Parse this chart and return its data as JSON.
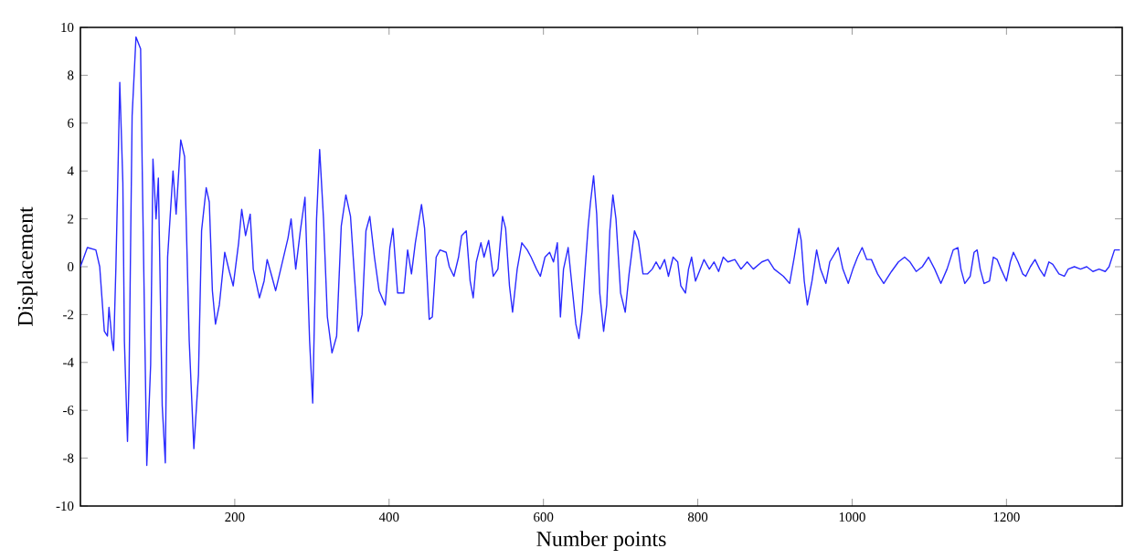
{
  "chart_data": {
    "type": "line",
    "xlabel": "Number points",
    "ylabel": "Displacement",
    "xlim": [
      0,
      1350
    ],
    "ylim": [
      -10,
      10
    ],
    "xticks": [
      200,
      400,
      600,
      800,
      1000,
      1200
    ],
    "yticks": [
      -10,
      -8,
      -6,
      -4,
      -2,
      0,
      2,
      4,
      6,
      8,
      10
    ],
    "marker": "none",
    "line_style": "solid",
    "series": [
      {
        "color": "#2a2aff",
        "x": [
          0,
          9,
          20,
          25,
          31,
          35,
          37,
          41,
          43,
          46,
          49,
          51,
          55,
          57,
          61,
          63,
          67,
          72,
          78,
          80,
          86,
          91,
          94,
          98,
          101,
          106,
          110,
          113,
          120,
          124,
          130,
          135,
          141,
          147,
          153,
          157,
          163,
          167,
          171,
          175,
          180,
          187,
          193,
          198,
          205,
          209,
          214,
          220,
          224,
          232,
          238,
          242,
          248,
          253,
          261,
          269,
          273,
          279,
          285,
          291,
          297,
          301,
          306,
          310,
          315,
          320,
          326,
          332,
          338,
          344,
          350,
          356,
          360,
          365,
          370,
          375,
          381,
          387,
          395,
          401,
          405,
          411,
          419,
          424,
          429,
          434,
          442,
          446,
          452,
          456,
          461,
          466,
          474,
          478,
          484,
          490,
          494,
          500,
          505,
          509,
          513,
          519,
          523,
          529,
          535,
          541,
          547,
          551,
          556,
          560,
          566,
          572,
          579,
          584,
          591,
          596,
          602,
          608,
          613,
          618,
          622,
          626,
          632,
          637,
          642,
          646,
          650,
          654,
          658,
          661,
          665,
          669,
          673,
          678,
          682,
          686,
          690,
          694,
          700,
          706,
          711,
          718,
          723,
          729,
          735,
          741,
          746,
          751,
          757,
          762,
          768,
          774,
          778,
          784,
          788,
          792,
          797,
          802,
          808,
          815,
          821,
          827,
          833,
          839,
          848,
          856,
          864,
          872,
          883,
          891,
          899,
          911,
          919,
          925,
          931,
          934,
          938,
          942,
          948,
          954,
          959,
          966,
          971,
          982,
          988,
          995,
          1001,
          1007,
          1013,
          1019,
          1025,
          1033,
          1041,
          1051,
          1060,
          1068,
          1075,
          1083,
          1091,
          1099,
          1107,
          1115,
          1123,
          1131,
          1137,
          1141,
          1146,
          1153,
          1158,
          1162,
          1166,
          1171,
          1178,
          1183,
          1188,
          1193,
          1200,
          1205,
          1209,
          1215,
          1221,
          1225,
          1231,
          1237,
          1243,
          1249,
          1255,
          1260,
          1268,
          1275,
          1280,
          1288,
          1296,
          1304,
          1312,
          1320,
          1328,
          1333,
          1340,
          1344,
          1347
        ],
        "values": [
          0,
          0.8,
          0.7,
          0,
          -2.7,
          -2.9,
          -1.7,
          -3.1,
          -3.5,
          0,
          4.5,
          7.7,
          3.5,
          -3.1,
          -7.3,
          -4.7,
          6.3,
          9.6,
          9.1,
          4.3,
          -8.3,
          -4.1,
          4.5,
          2,
          3.7,
          -5.8,
          -8.2,
          0.4,
          4,
          2.2,
          5.3,
          4.6,
          -3.1,
          -7.6,
          -4.5,
          1.5,
          3.3,
          2.7,
          -1,
          -2.4,
          -1.6,
          0.6,
          -0.2,
          -0.8,
          1,
          2.4,
          1.3,
          2.2,
          -0.1,
          -1.3,
          -0.6,
          0.3,
          -0.4,
          -1,
          0.1,
          1.2,
          2,
          -0.1,
          1.5,
          2.9,
          -3.1,
          -5.7,
          2,
          4.9,
          2,
          -2.1,
          -3.6,
          -2.9,
          1.7,
          3,
          2.1,
          -0.8,
          -2.7,
          -2,
          1.5,
          2.1,
          0.4,
          -1,
          -1.6,
          0.8,
          1.6,
          -1.1,
          -1.1,
          0.7,
          -0.3,
          1,
          2.6,
          1.6,
          -2.2,
          -2.1,
          0.4,
          0.7,
          0.6,
          0,
          -0.4,
          0.4,
          1.3,
          1.5,
          -0.6,
          -1.3,
          0.2,
          1,
          0.4,
          1.1,
          -0.4,
          -0.1,
          2.1,
          1.6,
          -0.8,
          -1.9,
          -0.1,
          1,
          0.7,
          0.4,
          -0.1,
          -0.4,
          0.4,
          0.6,
          0.2,
          1,
          -2.1,
          -0.1,
          0.8,
          -0.8,
          -2.4,
          -3,
          -1.9,
          -0.1,
          1.7,
          2.7,
          3.8,
          2.2,
          -1.1,
          -2.7,
          -1.6,
          1.5,
          3,
          2,
          -1.1,
          -1.9,
          -0.3,
          1.5,
          1.1,
          -0.3,
          -0.3,
          -0.1,
          0.2,
          -0.1,
          0.3,
          -0.4,
          0.4,
          0.2,
          -0.8,
          -1.1,
          -0.1,
          0.4,
          -0.6,
          -0.2,
          0.3,
          -0.1,
          0.2,
          -0.2,
          0.4,
          0.2,
          0.3,
          -0.1,
          0.2,
          -0.1,
          0.2,
          0.3,
          -0.1,
          -0.4,
          -0.7,
          0.4,
          1.6,
          1.1,
          -0.6,
          -1.6,
          -0.6,
          0.7,
          -0.1,
          -0.7,
          0.2,
          0.8,
          -0.1,
          -0.7,
          -0.1,
          0.4,
          0.8,
          0.3,
          0.3,
          -0.3,
          -0.7,
          -0.2,
          0.2,
          0.4,
          0.2,
          -0.2,
          0,
          0.4,
          -0.1,
          -0.7,
          -0.1,
          0.7,
          0.8,
          -0.1,
          -0.7,
          -0.4,
          0.6,
          0.7,
          -0.1,
          -0.7,
          -0.6,
          0.4,
          0.3,
          -0.1,
          -0.6,
          0.2,
          0.6,
          0.2,
          -0.3,
          -0.4,
          0,
          0.3,
          -0.1,
          -0.4,
          0.2,
          0.1,
          -0.3,
          -0.4,
          -0.1,
          0,
          -0.1,
          0,
          -0.2,
          -0.1,
          -0.2,
          0,
          0.7,
          0.7,
          0.7
        ]
      }
    ]
  }
}
